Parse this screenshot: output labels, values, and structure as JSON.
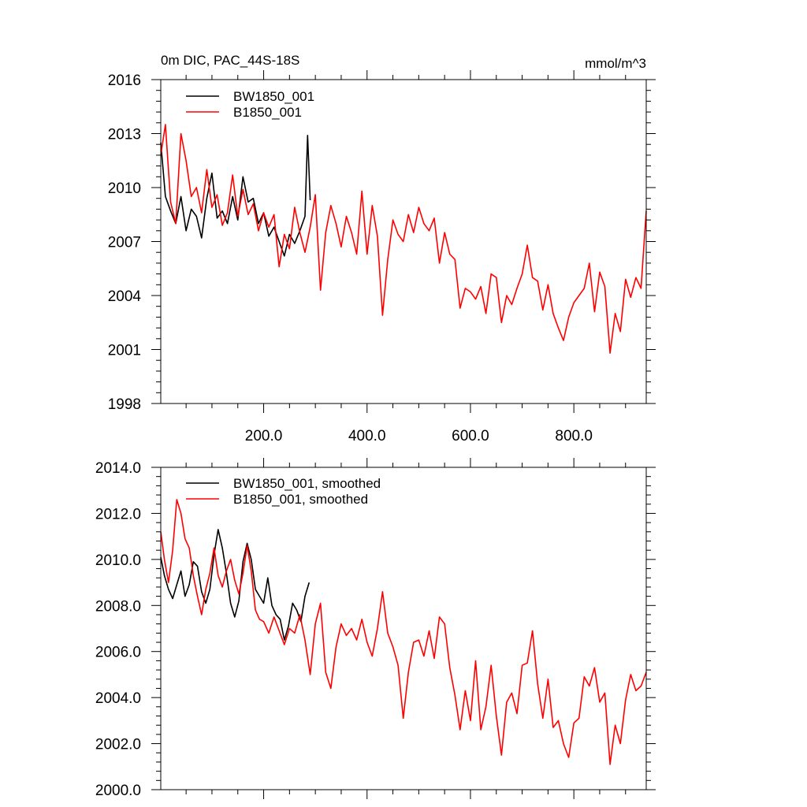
{
  "chart_data": [
    {
      "type": "line",
      "title": "0m DIC, PAC_44S-18S",
      "units": "mmol/m^3",
      "xlabel": "",
      "ylabel": "",
      "xlim": [
        1,
        940
      ],
      "ylim": [
        1998,
        2016
      ],
      "x_ticks": [
        200,
        400,
        600,
        800
      ],
      "x_tick_labels": [
        "200.0",
        "400.0",
        "600.0",
        "800.0"
      ],
      "y_ticks": [
        1998,
        2001,
        2004,
        2007,
        2010,
        2013,
        2016
      ],
      "y_tick_labels": [
        "1998",
        "2001",
        "2004",
        "2007",
        "2010",
        "2013",
        "2016"
      ],
      "legend_position": "top-left",
      "series": [
        {
          "name": "BW1850_001",
          "color": "#000000",
          "x": [
            1,
            10,
            20,
            30,
            40,
            50,
            60,
            70,
            80,
            90,
            100,
            110,
            120,
            130,
            140,
            150,
            160,
            170,
            180,
            190,
            200,
            210,
            220,
            230,
            240,
            250,
            260,
            270,
            280,
            285,
            290
          ],
          "y": [
            2012.5,
            2009.5,
            2008.7,
            2008.0,
            2009.5,
            2007.6,
            2008.8,
            2008.4,
            2007.2,
            2009.4,
            2010.8,
            2008.3,
            2008.7,
            2008.0,
            2009.5,
            2008.2,
            2010.6,
            2009.2,
            2009.4,
            2008.0,
            2008.6,
            2007.3,
            2007.8,
            2007.0,
            2006.2,
            2007.4,
            2006.9,
            2007.6,
            2008.4,
            2012.9,
            2009.3
          ]
        },
        {
          "name": "B1850_001",
          "color": "#ff0000",
          "x": [
            1,
            10,
            20,
            30,
            40,
            50,
            60,
            70,
            80,
            90,
            100,
            110,
            120,
            130,
            140,
            150,
            160,
            170,
            180,
            190,
            200,
            210,
            220,
            230,
            240,
            250,
            260,
            270,
            280,
            290,
            300,
            310,
            320,
            330,
            340,
            350,
            360,
            370,
            380,
            390,
            400,
            410,
            420,
            430,
            440,
            450,
            460,
            470,
            480,
            490,
            500,
            510,
            520,
            530,
            540,
            550,
            560,
            570,
            580,
            590,
            600,
            610,
            620,
            630,
            640,
            650,
            660,
            670,
            680,
            690,
            700,
            710,
            720,
            730,
            740,
            750,
            760,
            770,
            780,
            790,
            800,
            810,
            820,
            830,
            840,
            850,
            860,
            870,
            880,
            890,
            900,
            910,
            920,
            930,
            940
          ],
          "y": [
            2011.8,
            2013.5,
            2009.2,
            2008.0,
            2013.0,
            2011.5,
            2009.5,
            2010.0,
            2008.6,
            2011.0,
            2008.9,
            2009.6,
            2007.9,
            2008.6,
            2010.7,
            2008.4,
            2009.9,
            2008.5,
            2009.1,
            2007.6,
            2008.6,
            2007.8,
            2008.5,
            2005.6,
            2007.4,
            2006.6,
            2008.9,
            2007.5,
            2006.4,
            2007.8,
            2009.6,
            2004.3,
            2007.5,
            2009.0,
            2008.0,
            2006.7,
            2008.4,
            2007.5,
            2006.3,
            2009.8,
            2006.3,
            2009.0,
            2007.3,
            2002.9,
            2006.0,
            2008.2,
            2007.4,
            2007.0,
            2008.5,
            2007.5,
            2008.9,
            2008.0,
            2007.6,
            2008.3,
            2005.8,
            2007.5,
            2006.3,
            2006.0,
            2003.3,
            2004.4,
            2004.2,
            2003.8,
            2004.5,
            2003.0,
            2005.2,
            2005.0,
            2002.5,
            2004.0,
            2003.5,
            2004.4,
            2005.2,
            2006.8,
            2005.0,
            2004.8,
            2003.2,
            2004.6,
            2003.0,
            2002.2,
            2001.5,
            2002.8,
            2003.6,
            2004.0,
            2004.4,
            2005.8,
            2003.1,
            2005.3,
            2004.5,
            2000.8,
            2003.0,
            2002.0,
            2004.9,
            2003.9,
            2005.0,
            2004.4,
            2008.7
          ]
        }
      ]
    },
    {
      "type": "line",
      "title": "",
      "xlabel": "",
      "ylabel": "",
      "xlim": [
        1,
        940
      ],
      "ylim": [
        2000,
        2014
      ],
      "x_ticks": [
        200,
        400,
        600,
        800
      ],
      "y_ticks": [
        2000,
        2002,
        2004,
        2006,
        2008,
        2010,
        2012,
        2014
      ],
      "y_tick_labels": [
        "2000.0",
        "2002.0",
        "2004.0",
        "2006.0",
        "2008.0",
        "2010.0",
        "2012.0",
        "2014.0"
      ],
      "legend_position": "top-left",
      "series": [
        {
          "name": "BW1850_001, smoothed",
          "color": "#000000",
          "x": [
            1,
            8,
            16,
            24,
            32,
            40,
            48,
            56,
            64,
            72,
            80,
            88,
            96,
            104,
            112,
            120,
            128,
            136,
            144,
            152,
            160,
            168,
            176,
            184,
            192,
            200,
            208,
            216,
            224,
            232,
            240,
            248,
            256,
            264,
            272,
            280,
            288
          ],
          "y": [
            2010.1,
            2009.3,
            2008.7,
            2008.3,
            2008.9,
            2009.5,
            2008.4,
            2008.9,
            2009.9,
            2009.7,
            2008.6,
            2008.1,
            2008.7,
            2010.2,
            2011.3,
            2010.5,
            2009.4,
            2008.1,
            2007.5,
            2008.2,
            2009.9,
            2010.7,
            2010.0,
            2008.7,
            2008.4,
            2008.1,
            2009.2,
            2008.0,
            2007.6,
            2007.4,
            2006.5,
            2007.1,
            2008.1,
            2007.8,
            2007.3,
            2008.4,
            2009.0
          ]
        },
        {
          "name": "B1850_001, smoothed",
          "color": "#ff0000",
          "x": [
            1,
            8,
            16,
            24,
            32,
            40,
            48,
            56,
            64,
            72,
            80,
            88,
            96,
            104,
            112,
            120,
            128,
            136,
            144,
            152,
            160,
            168,
            176,
            184,
            192,
            200,
            210,
            220,
            230,
            240,
            250,
            260,
            270,
            280,
            290,
            300,
            310,
            320,
            330,
            340,
            350,
            360,
            370,
            380,
            390,
            400,
            410,
            420,
            430,
            440,
            450,
            460,
            470,
            480,
            490,
            500,
            510,
            520,
            530,
            540,
            550,
            560,
            570,
            580,
            590,
            600,
            610,
            620,
            630,
            640,
            650,
            660,
            670,
            680,
            690,
            700,
            710,
            720,
            730,
            740,
            750,
            760,
            770,
            780,
            790,
            800,
            810,
            820,
            830,
            840,
            850,
            860,
            870,
            880,
            890,
            900,
            910,
            920,
            930,
            940
          ],
          "y": [
            2011.2,
            2010.0,
            2009.0,
            2010.4,
            2012.6,
            2012.0,
            2010.9,
            2010.5,
            2009.3,
            2008.4,
            2007.6,
            2008.7,
            2009.4,
            2010.5,
            2009.3,
            2008.8,
            2009.5,
            2010.0,
            2009.1,
            2008.5,
            2009.4,
            2010.6,
            2009.5,
            2007.8,
            2007.4,
            2007.3,
            2006.8,
            2007.5,
            2006.9,
            2006.3,
            2007.0,
            2006.8,
            2007.6,
            2006.5,
            2005.0,
            2007.2,
            2008.1,
            2005.1,
            2004.4,
            2006.2,
            2007.2,
            2006.7,
            2007.0,
            2006.5,
            2007.4,
            2006.4,
            2005.8,
            2007.0,
            2008.6,
            2006.8,
            2006.2,
            2005.4,
            2003.1,
            2005.1,
            2006.4,
            2006.5,
            2005.8,
            2006.9,
            2005.7,
            2007.5,
            2007.2,
            2005.3,
            2004.1,
            2002.6,
            2004.3,
            2003.0,
            2005.6,
            2002.6,
            2003.6,
            2005.4,
            2003.2,
            2001.5,
            2003.8,
            2004.2,
            2003.3,
            2005.4,
            2005.5,
            2006.9,
            2004.6,
            2003.1,
            2004.8,
            2002.7,
            2003.0,
            2002.0,
            2001.4,
            2002.9,
            2003.1,
            2004.9,
            2004.5,
            2005.3,
            2003.8,
            2004.2,
            2001.1,
            2002.8,
            2002.0,
            2003.9,
            2005.0,
            2004.3,
            2004.5,
            2005.1
          ]
        }
      ]
    }
  ]
}
